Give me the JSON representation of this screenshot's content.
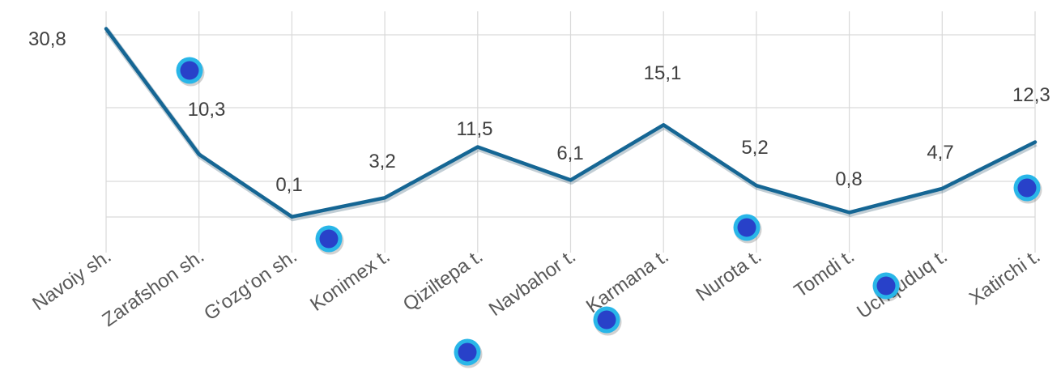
{
  "chart_data": {
    "type": "line",
    "categories": [
      "Navoiy sh.",
      "Zarafshon sh.",
      "G‘ozg‘on sh.",
      "Konimex t.",
      "Qiziltepa t.",
      "Navbahor t.",
      "Karmana t.",
      "Nurota t.",
      "Tomdi t.",
      "Uchquduq t.",
      "Xatirchi t."
    ],
    "series": [
      {
        "values": [
          30.8,
          10.3,
          0.1,
          3.2,
          11.5,
          6.1,
          15.1,
          5.2,
          0.8,
          4.7,
          12.3
        ],
        "labels": [
          "30,8",
          "10,3",
          "0,1",
          "3,2",
          "11,5",
          "6,1",
          "15,1",
          "5,2",
          "0,8",
          "4,7",
          "12,3"
        ],
        "color": "#156694"
      }
    ],
    "decorative_dots": {
      "fill": "#2841c9",
      "ring": "#29b6e8",
      "count": 7
    },
    "grid": true,
    "grid_color": "#d9d9d9",
    "legend": "none"
  }
}
